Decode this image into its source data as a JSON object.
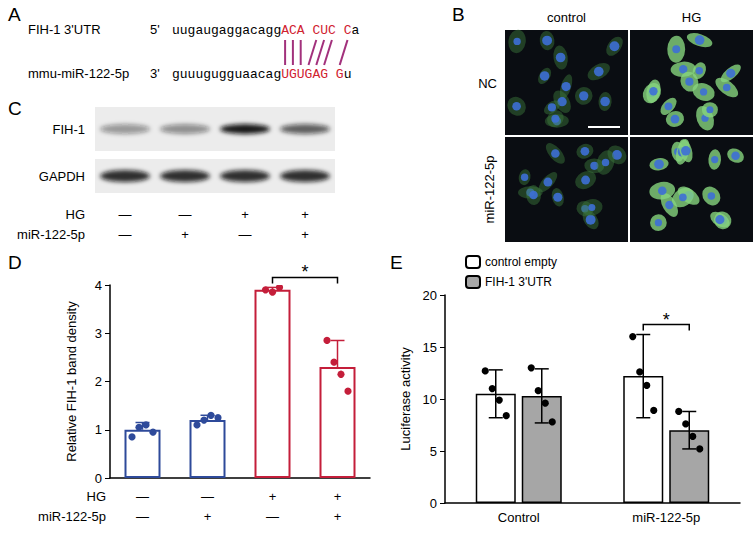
{
  "panel_a": {
    "label": "A",
    "rows": [
      {
        "name": "FIH-1 3'UTR",
        "end": "5'",
        "seq": "uugaugaggacagg",
        "seed": "ACA CUC C",
        "tail": "a"
      },
      {
        "name": "mmu-miR-122-5p",
        "end": "3'",
        "seq": "guuugugguaacag",
        "seed": "UGUGAG G",
        "tail": "u"
      }
    ]
  },
  "panel_b": {
    "label": "B",
    "columns": [
      "control",
      "HG"
    ],
    "rows": [
      "NC",
      "miR-122-5p"
    ]
  },
  "panel_c": {
    "label": "C",
    "bands": [
      "FIH-1",
      "GAPDH"
    ],
    "conditions": [
      {
        "name": "HG",
        "values": [
          "—",
          "—",
          "+",
          "+"
        ]
      },
      {
        "name": "miR-122-5p",
        "values": [
          "—",
          "+",
          "—",
          "+"
        ]
      }
    ]
  },
  "chart_data": [
    {
      "panel_label": "D",
      "type": "bar",
      "categories": [
        null,
        null,
        null,
        null
      ],
      "values": [
        1.0,
        1.2,
        3.9,
        2.3
      ],
      "errors_up": [
        0.15,
        0.1,
        0.05,
        0.55
      ],
      "points": [
        [
          0.85,
          1.05,
          1.1,
          0.95
        ],
        [
          1.1,
          1.2,
          1.3,
          1.25
        ],
        [
          3.9,
          3.85,
          3.95
        ],
        [
          2.85,
          2.4,
          2.15,
          1.8
        ]
      ],
      "colors": [
        "#2e4a9a",
        "#2e4a9a",
        "#c41e3a",
        "#c41e3a"
      ],
      "y_label": "Relative FIH-1 band density",
      "ylim": [
        0,
        4
      ],
      "yticks": [
        0,
        1,
        2,
        3,
        4
      ],
      "grid": false,
      "conditions": [
        {
          "name": "HG",
          "values": [
            "—",
            "—",
            "+",
            "+"
          ]
        },
        {
          "name": "miR-122-5p",
          "values": [
            "—",
            "+",
            "—",
            "+"
          ]
        }
      ],
      "annotations": [
        {
          "text": "*",
          "between": [
            2,
            3
          ]
        }
      ]
    },
    {
      "panel_label": "E",
      "type": "bar",
      "categories": [
        "Control",
        "miR-122-5p"
      ],
      "series": [
        {
          "name": "control empty",
          "color": "#ffffff",
          "values": [
            10.5,
            12.2
          ],
          "errors": [
            2.3,
            4.0
          ],
          "points": [
            [
              12.7,
              11.0,
              9.9,
              8.4
            ],
            [
              16.0,
              12.6,
              11.3,
              8.9
            ]
          ]
        },
        {
          "name": "FIH-1 3'UTR",
          "color": "#a6a6a6",
          "values": [
            10.3,
            7.0
          ],
          "errors": [
            2.6,
            1.8
          ],
          "points": [
            [
              13.0,
              10.8,
              9.6,
              7.8
            ],
            [
              8.8,
              7.6,
              6.4,
              5.2
            ]
          ]
        }
      ],
      "y_label": "Luciferase activity",
      "ylim": [
        0,
        20
      ],
      "yticks": [
        0,
        5,
        10,
        15,
        20
      ],
      "grid": false,
      "legend": "upper left",
      "annotations": [
        {
          "text": "*",
          "category": 1,
          "between_series": [
            0,
            1
          ]
        }
      ]
    }
  ]
}
